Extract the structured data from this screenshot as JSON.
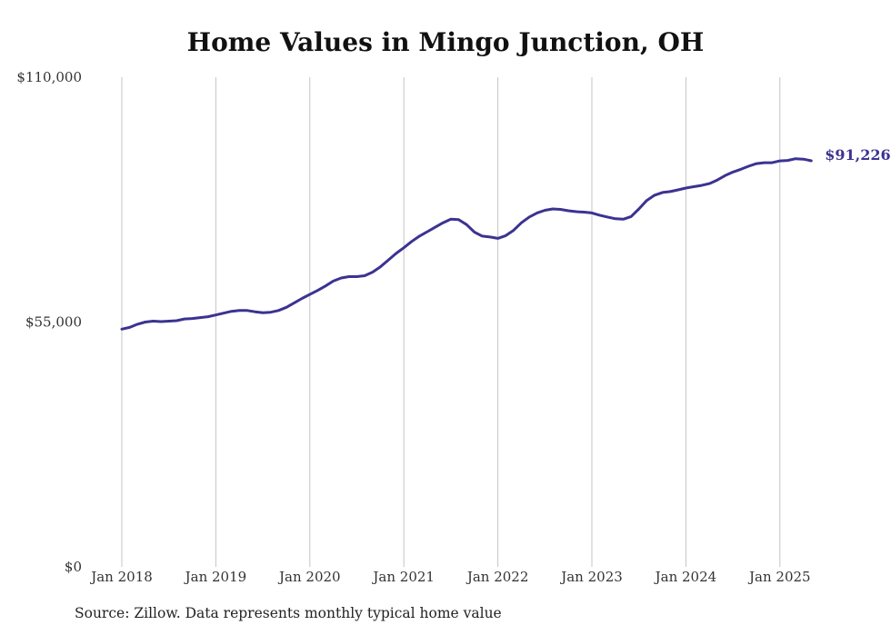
{
  "chart_data": {
    "type": "line",
    "title": "Home Values in Mingo Junction, OH",
    "source": "Source: Zillow. Data represents monthly typical home value",
    "xlabel": "",
    "ylabel": "",
    "x_ticks": [
      "Jan 2018",
      "Jan 2019",
      "Jan 2020",
      "Jan 2021",
      "Jan 2022",
      "Jan 2023",
      "Jan 2024",
      "Jan 2025"
    ],
    "y_ticks": [
      0,
      55000,
      110000
    ],
    "y_tick_labels": [
      "$0",
      "$55,000",
      "$110,000"
    ],
    "ylim": [
      0,
      110000
    ],
    "grid": "vertical",
    "line_color": "#3b3391",
    "end_label": "$91,226",
    "series": [
      {
        "values": [
          53400,
          53800,
          54500,
          55000,
          55200,
          55100,
          55200,
          55300,
          55700,
          55800,
          56000,
          56200,
          56600,
          57000,
          57400,
          57600,
          57600,
          57300,
          57100,
          57200,
          57600,
          58300,
          59300,
          60300,
          61200,
          62100,
          63100,
          64200,
          64900,
          65200,
          65200,
          65400,
          66200,
          67400,
          68900,
          70400,
          71700,
          73100,
          74300,
          75300,
          76300,
          77300,
          78100,
          78000,
          76900,
          75200,
          74300,
          74100,
          73800,
          74400,
          75600,
          77300,
          78600,
          79500,
          80100,
          80400,
          80300,
          80000,
          79800,
          79700,
          79500,
          79000,
          78600,
          78200,
          78100,
          78700,
          80400,
          82300,
          83500,
          84100,
          84300,
          84700,
          85100,
          85400,
          85700,
          86100,
          86900,
          87900,
          88700,
          89300,
          90000,
          90600,
          90800,
          90800,
          91200,
          91300,
          91700,
          91600,
          91226
        ]
      }
    ]
  }
}
